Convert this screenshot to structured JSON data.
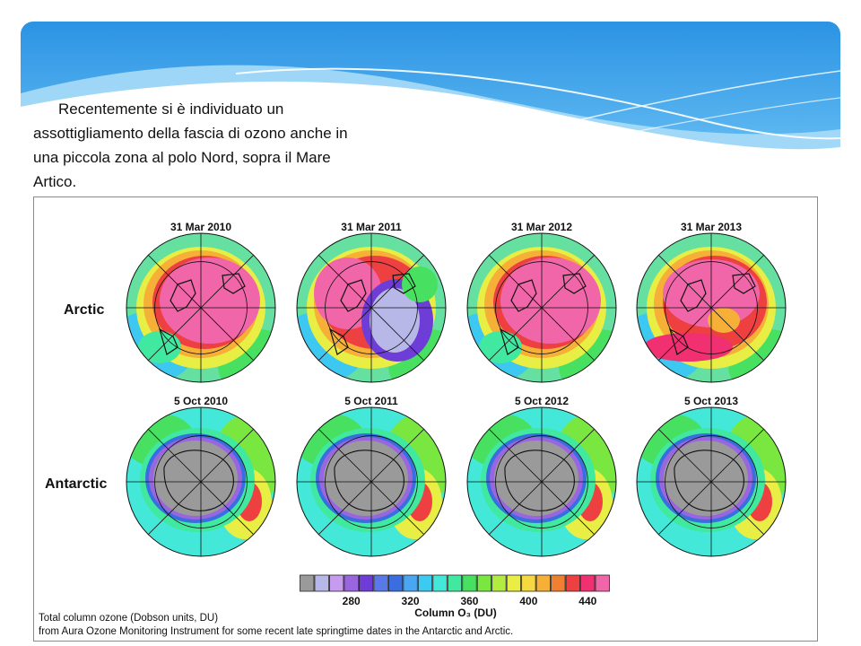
{
  "intro": {
    "text": "Recentemente si è individuato un assottigliamento della fascia di ozono anche in una piccola zona al polo Nord, sopra il Mare Artico."
  },
  "figure": {
    "rows": [
      {
        "label": "Arctic",
        "maps": [
          {
            "date": "31 Mar 2010",
            "pattern": "arctic-high"
          },
          {
            "date": "31 Mar 2011",
            "pattern": "arctic-hole"
          },
          {
            "date": "31 Mar 2012",
            "pattern": "arctic-high"
          },
          {
            "date": "31 Mar 2013",
            "pattern": "arctic-mixed"
          }
        ]
      },
      {
        "label": "Antarctic",
        "maps": [
          {
            "date": "5 Oct 2010",
            "pattern": "antarctic-hole"
          },
          {
            "date": "5 Oct 2011",
            "pattern": "antarctic-hole"
          },
          {
            "date": "5 Oct 2012",
            "pattern": "antarctic-hole"
          },
          {
            "date": "5 Oct 2013",
            "pattern": "antarctic-hole"
          }
        ]
      }
    ],
    "colorbar": {
      "colors": [
        "#9a9a9a",
        "#b8b8e8",
        "#c79cf0",
        "#9a66e0",
        "#6e3cd6",
        "#5a78e8",
        "#3a6ee0",
        "#4aa6f0",
        "#3ccaf0",
        "#44e8d8",
        "#40e8a0",
        "#48e060",
        "#7ae640",
        "#b2ec40",
        "#e8ee44",
        "#f6d840",
        "#f6b038",
        "#f08030",
        "#ee4040",
        "#f03070",
        "#f066a8"
      ],
      "tick_labels": [
        "280",
        "320",
        "360",
        "400",
        "440"
      ],
      "title": "Column O₃ (DU)"
    },
    "credit_line1": "Total column ozone (Dobson units, DU)",
    "credit_line2": "from Aura Ozone Monitoring Instrument for some recent late springtime dates in the Antarctic and Arctic."
  },
  "colors": {
    "header_blue": "#2f9de8",
    "header_light": "#9fd7f7"
  }
}
